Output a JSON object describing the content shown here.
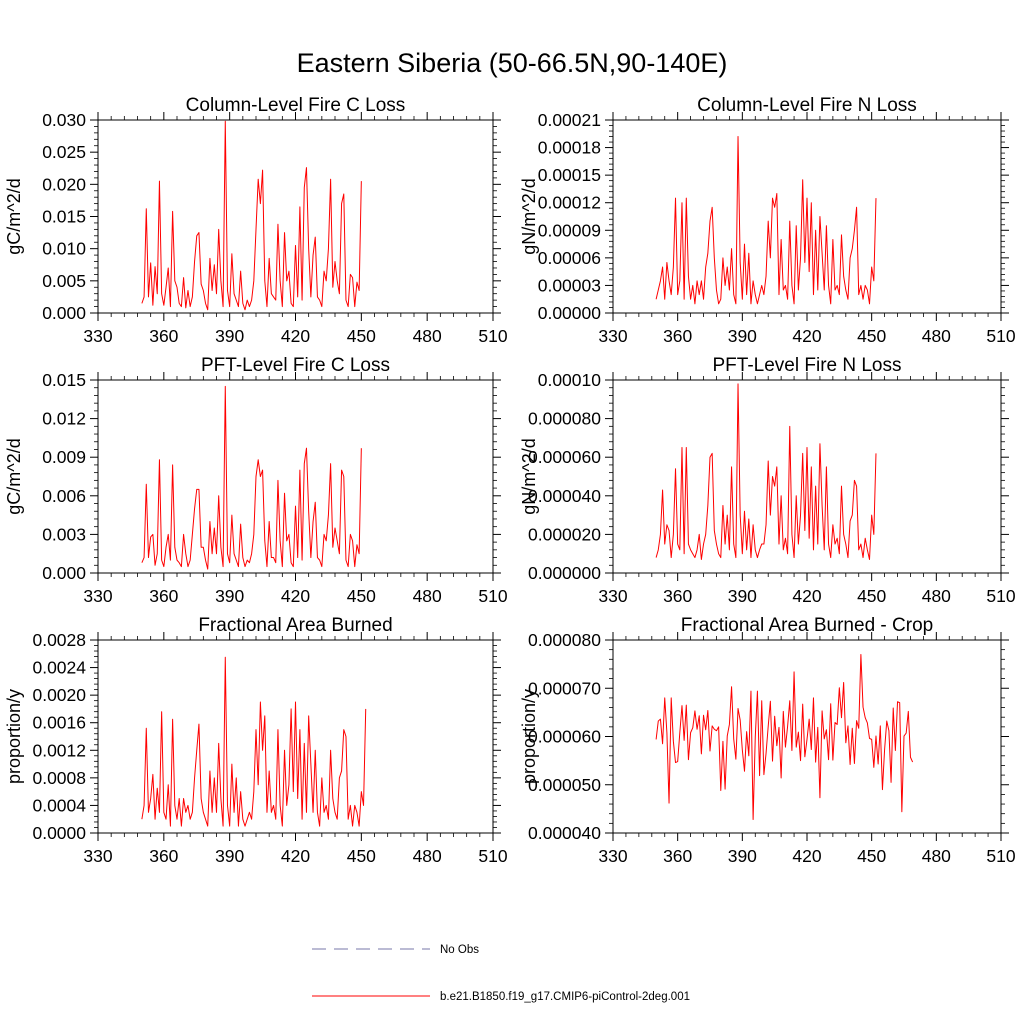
{
  "figure": {
    "title": "Eastern Siberia (50-66.5N,90-140E)",
    "line_color": "#ff0000",
    "obs_line_color": "#7777aa"
  },
  "legend": {
    "entries": [
      {
        "label": "No Obs",
        "style": "dashed",
        "color": "#7777aa"
      },
      {
        "label": "b.e21.B1850.f19_g17.CMIP6-piControl-2deg.001",
        "style": "solid",
        "color": "#ff0000"
      }
    ]
  },
  "chart_data": [
    {
      "type": "line",
      "title": "Column-Level Fire C Loss",
      "ylabel": "gC/m^2/d",
      "xlim": [
        330,
        510
      ],
      "ylim": [
        0,
        0.03
      ],
      "xticks": [
        330,
        360,
        390,
        420,
        450,
        480,
        510
      ],
      "yticks": [
        "0.000",
        "0.005",
        "0.010",
        "0.015",
        "0.020",
        "0.025",
        "0.030"
      ],
      "grid": false,
      "x_start": 350,
      "x_step": 1,
      "series": [
        {
          "values": [
            0.0015,
            0.0025,
            0.0162,
            0.0025,
            0.0078,
            0.0012,
            0.0072,
            0.003,
            0.0205,
            0.003,
            0.0012,
            0.004,
            0.007,
            0.001,
            0.0158,
            0.005,
            0.004,
            0.0015,
            0.001,
            0.0055,
            0.0008,
            0.0035,
            0.001,
            0.0025,
            0.008,
            0.012,
            0.0125,
            0.0045,
            0.0035,
            0.0015,
            0.0005,
            0.0085,
            0.0035,
            0.0075,
            0.003,
            0.013,
            0.005,
            0.001,
            0.0298,
            0.0035,
            0.001,
            0.0092,
            0.003,
            0.002,
            0.001,
            0.0065,
            0.0015,
            0.0005,
            0.002,
            0.001,
            0.002,
            0.005,
            0.013,
            0.0208,
            0.017,
            0.0222,
            0.005,
            0.001,
            0.0085,
            0.003,
            0.0025,
            0.002,
            0.0138,
            0.005,
            0.001,
            0.0125,
            0.005,
            0.0065,
            0.0015,
            0.001,
            0.0105,
            0.0025,
            0.0165,
            0.002,
            0.0195,
            0.0226,
            0.01,
            0.0025,
            0.009,
            0.0118,
            0.0025,
            0.002,
            0.001,
            0.0065,
            0.005,
            0.01,
            0.0208,
            0.004,
            0.008,
            0.005,
            0.003,
            0.017,
            0.0185,
            0.002,
            0.001,
            0.006,
            0.0055,
            0.001,
            0.0048,
            0.0035,
            0.0205
          ]
        }
      ]
    },
    {
      "type": "line",
      "title": "Column-Level Fire N Loss",
      "ylabel": "gN/m^2/d",
      "xlim": [
        330,
        510
      ],
      "ylim": [
        0,
        0.00021
      ],
      "xticks": [
        330,
        360,
        390,
        420,
        450,
        480,
        510
      ],
      "yticks": [
        "0.00000",
        "0.00003",
        "0.00006",
        "0.00009",
        "0.00012",
        "0.00015",
        "0.00018",
        "0.00021"
      ],
      "grid": false,
      "x_start": 350,
      "x_step": 1,
      "series": [
        {
          "values": [
            1.5e-05,
            2.5e-05,
            3.5e-05,
            5e-05,
            1.5e-05,
            5.5e-05,
            3.5e-05,
            2e-05,
            5e-05,
            0.000125,
            2e-05,
            3.5e-05,
            0.00012,
            1.5e-05,
            0.000125,
            4e-05,
            1.5e-05,
            3e-05,
            1e-05,
            3.5e-05,
            2e-05,
            3.5e-05,
            1.5e-05,
            5e-05,
            6.5e-05,
            0.0001,
            0.000115,
            6e-05,
            2.5e-05,
            1e-05,
            1.5e-05,
            6e-05,
            3e-05,
            5e-05,
            2.5e-05,
            7e-05,
            2e-05,
            1e-05,
            0.000192,
            5.5e-05,
            1.5e-05,
            7.5e-05,
            2e-05,
            6.5e-05,
            1e-05,
            3.5e-05,
            2e-05,
            1e-05,
            2e-05,
            3e-05,
            2e-05,
            4e-05,
            0.0001,
            6e-05,
            0.000125,
            0.000115,
            0.00013,
            2e-05,
            8e-05,
            2.5e-05,
            3e-05,
            1.5e-05,
            0.0001,
            3e-05,
            1e-05,
            9.5e-05,
            2.5e-05,
            6e-05,
            0.000145,
            5.5e-05,
            0.000125,
            4.5e-05,
            0.00012,
            2e-05,
            9e-05,
            2.5e-05,
            0.000105,
            6.5e-05,
            2.5e-05,
            9.5e-05,
            3e-05,
            1e-05,
            8e-05,
            2.5e-05,
            3e-05,
            2e-05,
            8.5e-05,
            4e-05,
            2.5e-05,
            1.5e-05,
            6e-05,
            7e-05,
            9e-05,
            0.000115,
            2e-05,
            3e-05,
            1.5e-05,
            3e-05,
            2.5e-05,
            1e-05,
            5e-05,
            3.5e-05,
            0.000125
          ]
        }
      ]
    },
    {
      "type": "line",
      "title": "PFT-Level Fire C Loss",
      "ylabel": "gC/m^2/d",
      "xlim": [
        330,
        510
      ],
      "ylim": [
        0,
        0.015
      ],
      "xticks": [
        330,
        360,
        390,
        420,
        450,
        480,
        510
      ],
      "yticks": [
        "0.000",
        "0.003",
        "0.006",
        "0.009",
        "0.012",
        "0.015"
      ],
      "grid": false,
      "x_start": 350,
      "x_step": 1,
      "series": [
        {
          "values": [
            0.0008,
            0.0012,
            0.0069,
            0.0012,
            0.0028,
            0.003,
            0.0006,
            0.0015,
            0.0088,
            0.001,
            0.0005,
            0.002,
            0.003,
            0.001,
            0.0084,
            0.002,
            0.001,
            0.0008,
            0.0005,
            0.003,
            0.0015,
            0.0005,
            0.001,
            0.003,
            0.005,
            0.0065,
            0.0065,
            0.002,
            0.002,
            0.001,
            0.0003,
            0.004,
            0.0015,
            0.0035,
            0.0015,
            0.006,
            0.002,
            0.0005,
            0.0145,
            0.0015,
            0.0008,
            0.0045,
            0.0015,
            0.001,
            0.0005,
            0.0038,
            0.0012,
            0.0005,
            0.001,
            0.0008,
            0.0015,
            0.003,
            0.0075,
            0.0088,
            0.0075,
            0.008,
            0.0025,
            0.0005,
            0.004,
            0.0012,
            0.0012,
            0.0008,
            0.0072,
            0.0025,
            0.0005,
            0.0062,
            0.0025,
            0.003,
            0.0008,
            0.0005,
            0.0052,
            0.0012,
            0.008,
            0.001,
            0.0085,
            0.0097,
            0.0048,
            0.0012,
            0.004,
            0.0055,
            0.0012,
            0.001,
            0.0005,
            0.003,
            0.0025,
            0.0045,
            0.0085,
            0.002,
            0.0035,
            0.0025,
            0.0015,
            0.008,
            0.0075,
            0.001,
            0.0005,
            0.003,
            0.0025,
            0.0005,
            0.0022,
            0.0015,
            0.0097
          ]
        }
      ]
    },
    {
      "type": "line",
      "title": "PFT-Level Fire N Loss",
      "ylabel": "gN/m^2/d",
      "xlim": [
        330,
        510
      ],
      "ylim": [
        0,
        0.0001
      ],
      "xticks": [
        330,
        360,
        390,
        420,
        450,
        480,
        510
      ],
      "yticks": [
        "0.000000",
        "0.000020",
        "0.000040",
        "0.000060",
        "0.000080",
        "0.00010"
      ],
      "grid": false,
      "x_start": 350,
      "x_step": 1,
      "series": [
        {
          "values": [
            8e-06,
            1.2e-05,
            2e-05,
            4.3e-05,
            1.5e-05,
            2.5e-05,
            2.2e-05,
            8e-06,
            2e-05,
            5.4e-05,
            1.5e-05,
            1.2e-05,
            6.5e-05,
            1e-05,
            6.5e-05,
            1.5e-05,
            1.2e-05,
            1e-05,
            8e-06,
            1.2e-05,
            2e-05,
            7e-06,
            1.5e-05,
            2e-05,
            3.5e-05,
            6e-05,
            6.2e-05,
            2.2e-05,
            1.5e-05,
            1e-05,
            8e-06,
            3.5e-05,
            1.5e-05,
            3e-05,
            1.2e-05,
            5.5e-05,
            1.5e-05,
            8e-06,
            9.8e-05,
            3e-05,
            1e-05,
            3.2e-05,
            1.2e-05,
            2.8e-05,
            8e-06,
            2.5e-05,
            1.2e-05,
            8e-06,
            1.2e-05,
            1.5e-05,
            1.5e-05,
            2.5e-05,
            5.8e-05,
            3e-05,
            5e-05,
            4.5e-05,
            5.5e-05,
            1.5e-05,
            4e-05,
            1.2e-05,
            1.8e-05,
            1e-05,
            7.6e-05,
            2e-05,
            8e-06,
            4e-05,
            1.5e-05,
            3e-05,
            6.2e-05,
            2.2e-05,
            6.5e-05,
            1.8e-05,
            5.5e-05,
            1.2e-05,
            4.5e-05,
            1.5e-05,
            6.7e-05,
            3.5e-05,
            1.2e-05,
            5.5e-05,
            1.5e-05,
            8e-06,
            2.5e-05,
            1.5e-05,
            1.8e-05,
            1e-05,
            4.5e-05,
            2e-05,
            1.5e-05,
            8e-06,
            2.7e-05,
            3e-05,
            4.8e-05,
            4.5e-05,
            1.2e-05,
            1.5e-05,
            8e-06,
            1.8e-05,
            1.2e-05,
            7e-06,
            3e-05,
            2e-05,
            6.2e-05
          ]
        }
      ]
    },
    {
      "type": "line",
      "title": "Fractional Area Burned",
      "ylabel": "proportion/y",
      "xlim": [
        330,
        510
      ],
      "ylim": [
        0,
        0.0028
      ],
      "xticks": [
        330,
        360,
        390,
        420,
        450,
        480,
        510
      ],
      "yticks": [
        "0.0000",
        "0.0004",
        "0.0008",
        "0.0012",
        "0.0016",
        "0.0020",
        "0.0024",
        "0.0028"
      ],
      "grid": false,
      "x_start": 350,
      "x_step": 1,
      "series": [
        {
          "values": [
            0.0002,
            0.0004,
            0.00152,
            0.0003,
            0.0005,
            0.00085,
            0.0002,
            0.00065,
            0.0003,
            0.00176,
            0.0003,
            0.0002,
            0.0007,
            0.0001,
            0.00165,
            0.0004,
            0.0002,
            0.0005,
            0.0001,
            0.0005,
            0.0003,
            0.0004,
            0.0002,
            0.0003,
            0.0008,
            0.0012,
            0.00158,
            0.0005,
            0.0003,
            0.0002,
            0.0001,
            0.0009,
            0.0003,
            0.0008,
            0.0003,
            0.0013,
            0.0005,
            0.0001,
            0.00255,
            0.0004,
            0.0001,
            0.001,
            0.0003,
            0.0008,
            0.0001,
            0.0006,
            0.0002,
            0.0001,
            0.0002,
            0.0003,
            0.0002,
            0.0006,
            0.0015,
            0.0007,
            0.0019,
            0.0012,
            0.0017,
            0.0003,
            0.0009,
            0.0003,
            0.0004,
            0.0002,
            0.0015,
            0.0004,
            0.0001,
            0.0012,
            0.0004,
            0.0007,
            0.0018,
            0.0006,
            0.0019,
            0.0005,
            0.0015,
            0.0002,
            0.0013,
            0.0003,
            0.0017,
            0.001,
            0.0003,
            0.0012,
            0.0003,
            0.0001,
            0.0008,
            0.0003,
            0.0004,
            0.0002,
            0.0012,
            0.0005,
            0.0003,
            0.0002,
            0.0008,
            0.0009,
            0.0015,
            0.0014,
            0.0002,
            0.0004,
            0.0001,
            0.0004,
            0.0003,
            0.0001,
            0.0006,
            0.0004,
            0.0018
          ]
        }
      ]
    },
    {
      "type": "line",
      "title": "Fractional Area Burned - Crop",
      "ylabel": "proportion/y",
      "xlim": [
        330,
        510
      ],
      "ylim": [
        4e-05,
        8e-05
      ],
      "xticks": [
        330,
        360,
        390,
        420,
        450,
        480,
        510
      ],
      "yticks": [
        "0.000040",
        "0.000050",
        "0.000060",
        "0.000070",
        "0.000080"
      ],
      "grid": false,
      "x_start": 350,
      "x_step": 1,
      "series": [
        {
          "values": [
            5.94e-05,
            6.32e-05,
            6.36e-05,
            5.85e-05,
            6.8e-05,
            6.08e-05,
            4.62e-05,
            6.8e-05,
            5.9e-05,
            5.46e-05,
            5.48e-05,
            6.08e-05,
            6.64e-05,
            5.92e-05,
            6.65e-05,
            5.52e-05,
            6.08e-05,
            6.18e-05,
            6.53e-05,
            6.15e-05,
            6.43e-05,
            5.64e-05,
            6.44e-05,
            6.14e-05,
            6.54e-05,
            5.7e-05,
            6.22e-05,
            6.15e-05,
            6.12e-05,
            6.2e-05,
            4.88e-05,
            5.9e-05,
            4.91e-05,
            6.01e-05,
            6.25e-05,
            7.03e-05,
            5.95e-05,
            5.53e-05,
            6.58e-05,
            6.34e-05,
            5.72e-05,
            5.28e-05,
            6.1e-05,
            5.6e-05,
            6.94e-05,
            4.28e-05,
            5.99e-05,
            6.94e-05,
            5.19e-05,
            6.74e-05,
            5.21e-05,
            5.65e-05,
            6.21e-05,
            6.73e-05,
            5.49e-05,
            6.42e-05,
            5.81e-05,
            6.19e-05,
            5.14e-05,
            6.52e-05,
            5.78e-05,
            6.21e-05,
            6.74e-05,
            5.71e-05,
            7.34e-05,
            5.78e-05,
            6.09e-05,
            5.5e-05,
            6.67e-05,
            5.58e-05,
            5.94e-05,
            6.36e-05,
            5.73e-05,
            6.8e-05,
            5.47e-05,
            6.19e-05,
            4.73e-05,
            6.53e-05,
            5.95e-05,
            6.14e-05,
            5.52e-05,
            6.68e-05,
            5.51e-05,
            6.29e-05,
            6.25e-05,
            7.01e-05,
            6.39e-05,
            7.12e-05,
            5.87e-05,
            6.22e-05,
            5.42e-05,
            6.17e-05,
            5.44e-05,
            6.33e-05,
            6.17e-05,
            7.7e-05,
            6.61e-05,
            6.39e-05,
            6.28e-05,
            5.96e-05,
            5.94e-05,
            5.36e-05,
            6.01e-05,
            5.43e-05,
            6.22e-05,
            4.9e-05,
            5.73e-05,
            6.32e-05,
            6.12e-05,
            5.05e-05,
            6.59e-05,
            5.71e-05,
            6.72e-05,
            6.7e-05,
            4.44e-05,
            6.01e-05,
            6.07e-05,
            6.52e-05,
            5.57e-05,
            5.47e-05
          ]
        }
      ]
    }
  ]
}
